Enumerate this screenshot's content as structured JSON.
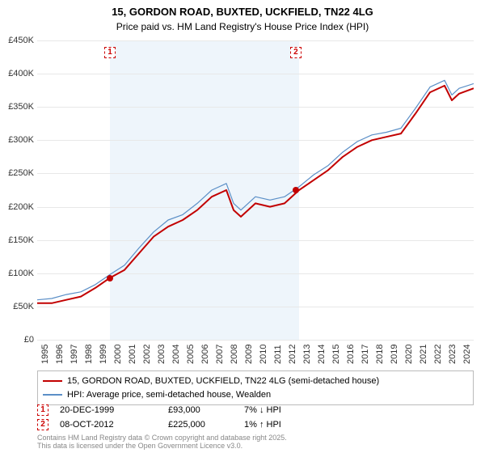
{
  "title": "15, GORDON ROAD, BUXTED, UCKFIELD, TN22 4LG",
  "subtitle": "Price paid vs. HM Land Registry's House Price Index (HPI)",
  "chart": {
    "type": "line",
    "background_color": "#ffffff",
    "grid_color": "#e8e8e8",
    "highlight_color": "#eef5fb",
    "xlim": [
      1995,
      2025
    ],
    "ylim": [
      0,
      450000
    ],
    "ytick_step": 50000,
    "y_ticks": [
      "£0",
      "£50K",
      "£100K",
      "£150K",
      "£200K",
      "£250K",
      "£300K",
      "£350K",
      "£400K",
      "£450K"
    ],
    "x_ticks": [
      "1995",
      "1996",
      "1997",
      "1998",
      "1999",
      "2000",
      "2001",
      "2002",
      "2003",
      "2004",
      "2005",
      "2006",
      "2007",
      "2008",
      "2009",
      "2010",
      "2011",
      "2012",
      "2013",
      "2014",
      "2015",
      "2016",
      "2017",
      "2018",
      "2019",
      "2020",
      "2021",
      "2022",
      "2023",
      "2024"
    ],
    "highlight_bands": [
      {
        "from": 2000,
        "to": 2013
      }
    ],
    "series": [
      {
        "name": "15, GORDON ROAD, BUXTED, UCKFIELD, TN22 4LG (semi-detached house)",
        "color": "#c20000",
        "line_width": 2,
        "data": [
          [
            1995,
            55000
          ],
          [
            1996,
            55000
          ],
          [
            1997,
            60000
          ],
          [
            1998,
            65000
          ],
          [
            1999,
            78000
          ],
          [
            2000,
            93000
          ],
          [
            2001,
            105000
          ],
          [
            2002,
            130000
          ],
          [
            2003,
            155000
          ],
          [
            2004,
            170000
          ],
          [
            2005,
            180000
          ],
          [
            2006,
            195000
          ],
          [
            2007,
            215000
          ],
          [
            2008,
            225000
          ],
          [
            2008.5,
            195000
          ],
          [
            2009,
            185000
          ],
          [
            2010,
            205000
          ],
          [
            2011,
            200000
          ],
          [
            2012,
            205000
          ],
          [
            2013,
            225000
          ],
          [
            2014,
            240000
          ],
          [
            2015,
            255000
          ],
          [
            2016,
            275000
          ],
          [
            2017,
            290000
          ],
          [
            2018,
            300000
          ],
          [
            2019,
            305000
          ],
          [
            2020,
            310000
          ],
          [
            2021,
            340000
          ],
          [
            2022,
            372000
          ],
          [
            2023,
            382000
          ],
          [
            2023.5,
            360000
          ],
          [
            2024,
            370000
          ],
          [
            2025,
            378000
          ]
        ]
      },
      {
        "name": "HPI: Average price, semi-detached house, Wealden",
        "color": "#5b8fc7",
        "line_width": 1.2,
        "data": [
          [
            1995,
            60000
          ],
          [
            1996,
            62000
          ],
          [
            1997,
            68000
          ],
          [
            1998,
            72000
          ],
          [
            1999,
            83000
          ],
          [
            2000,
            98000
          ],
          [
            2001,
            112000
          ],
          [
            2002,
            138000
          ],
          [
            2003,
            162000
          ],
          [
            2004,
            180000
          ],
          [
            2005,
            188000
          ],
          [
            2006,
            205000
          ],
          [
            2007,
            225000
          ],
          [
            2008,
            235000
          ],
          [
            2008.5,
            205000
          ],
          [
            2009,
            195000
          ],
          [
            2010,
            215000
          ],
          [
            2011,
            210000
          ],
          [
            2012,
            215000
          ],
          [
            2013,
            230000
          ],
          [
            2014,
            248000
          ],
          [
            2015,
            262000
          ],
          [
            2016,
            282000
          ],
          [
            2017,
            298000
          ],
          [
            2018,
            308000
          ],
          [
            2019,
            312000
          ],
          [
            2020,
            318000
          ],
          [
            2021,
            348000
          ],
          [
            2022,
            380000
          ],
          [
            2023,
            390000
          ],
          [
            2023.5,
            368000
          ],
          [
            2024,
            378000
          ],
          [
            2025,
            385000
          ]
        ]
      }
    ],
    "markers": [
      {
        "n": "1",
        "year": 2000,
        "price": 93000
      },
      {
        "n": "2",
        "year": 2012.77,
        "price": 225000
      }
    ]
  },
  "legend": {
    "items": [
      {
        "color": "#c20000",
        "width": 2,
        "label": "15, GORDON ROAD, BUXTED, UCKFIELD, TN22 4LG (semi-detached house)"
      },
      {
        "color": "#5b8fc7",
        "width": 2,
        "label": "HPI: Average price, semi-detached house, Wealden"
      }
    ]
  },
  "transactions": [
    {
      "n": "1",
      "date": "20-DEC-1999",
      "price": "£93,000",
      "delta": "7% ↓ HPI"
    },
    {
      "n": "2",
      "date": "08-OCT-2012",
      "price": "£225,000",
      "delta": "1% ↑ HPI"
    }
  ],
  "footer": {
    "line1": "Contains HM Land Registry data © Crown copyright and database right 2025.",
    "line2": "This data is licensed under the Open Government Licence v3.0."
  }
}
